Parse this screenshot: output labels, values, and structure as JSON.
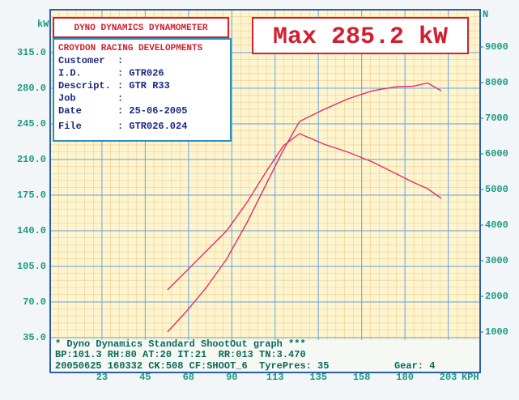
{
  "chart_data": {
    "type": "line",
    "title": "DYNO DYNAMICS DYNAMOMETER",
    "annotation": "Max 285.2 kW",
    "info_box": {
      "heading": "CROYDON RACING DEVELOPMENTS",
      "rows": [
        [
          "Customer",
          ":"
        ],
        [
          "I.D.",
          ": GTR026"
        ],
        [
          "Descript.",
          ": GTR R33"
        ],
        [
          "Job",
          ":"
        ],
        [
          "Date",
          ": 25-06-2005"
        ],
        [
          "File",
          ": GTR026.024"
        ]
      ]
    },
    "footer": [
      "* Dyno Dynamics Standard ShootOut graph ***",
      "BP:101.3 RH:80 AT:20 IT:21  RR:013 TN:3.470",
      "20050625 160332 CK:508 CF:SHOOT_6  TyrePres: 35",
      "Gear: 4"
    ],
    "x_label": "KPH",
    "y_label": "kW",
    "y2_label": "N",
    "x": [
      56.6,
      66.3,
      76.8,
      87.3,
      97.9,
      108.4,
      116.8,
      125.2,
      137.9,
      150.5,
      163.1,
      175.8,
      184.2,
      191.8,
      198.9
    ],
    "series": [
      {
        "color": "#e0306a",
        "values": [
          40.6,
          60.5,
          84.3,
          112.2,
          148.0,
          187.7,
          219.5,
          247.4,
          259.3,
          269.7,
          277.6,
          281.5,
          282.0,
          285.2,
          277.6
        ]
      },
      {
        "color": "#e0306a",
        "axis": "y2",
        "values": [
          2182,
          2705,
          3273,
          3841,
          4636,
          5545,
          6227,
          6568,
          6273,
          6045,
          5773,
          5432,
          5205,
          5023,
          4750
        ]
      }
    ],
    "xlim": [
      -4.4,
      219.1
    ],
    "xticks": [
      {
        "value": 22.5,
        "label": "23"
      },
      45,
      {
        "value": 67.5,
        "label": "68"
      },
      90,
      {
        "value": 112.5,
        "label": "113"
      },
      135,
      {
        "value": 157.5,
        "label": "158"
      },
      180,
      {
        "value": 202.5,
        "label": "203"
      }
    ],
    "ylim": [
      32.6,
      357.2
    ],
    "yticks": [
      {
        "value": 35,
        "label": "35.0"
      },
      {
        "value": 70,
        "label": "70.0"
      },
      {
        "value": 105,
        "label": "105.0"
      },
      {
        "value": 140,
        "label": "140.0"
      },
      {
        "value": 175,
        "label": "175.0"
      },
      {
        "value": 210,
        "label": "210.0"
      },
      {
        "value": 245,
        "label": "245.0"
      },
      {
        "value": 280,
        "label": "280.0"
      },
      {
        "value": 315,
        "label": "315.0"
      }
    ],
    "y2lim": [
      773,
      10045
    ],
    "y2ticks": [
      1000,
      2000,
      3000,
      4000,
      5000,
      6000,
      7000,
      8000,
      9000
    ],
    "grid": true
  }
}
